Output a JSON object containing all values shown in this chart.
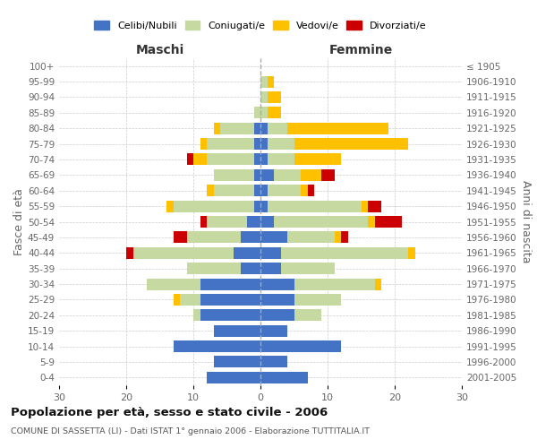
{
  "age_groups": [
    "0-4",
    "5-9",
    "10-14",
    "15-19",
    "20-24",
    "25-29",
    "30-34",
    "35-39",
    "40-44",
    "45-49",
    "50-54",
    "55-59",
    "60-64",
    "65-69",
    "70-74",
    "75-79",
    "80-84",
    "85-89",
    "90-94",
    "95-99",
    "100+"
  ],
  "birth_years": [
    "2001-2005",
    "1996-2000",
    "1991-1995",
    "1986-1990",
    "1981-1985",
    "1976-1980",
    "1971-1975",
    "1966-1970",
    "1961-1965",
    "1956-1960",
    "1951-1955",
    "1946-1950",
    "1941-1945",
    "1936-1940",
    "1931-1935",
    "1926-1930",
    "1921-1925",
    "1916-1920",
    "1911-1915",
    "1906-1910",
    "≤ 1905"
  ],
  "maschi": {
    "celibi": [
      8,
      7,
      13,
      7,
      9,
      9,
      9,
      3,
      4,
      3,
      2,
      1,
      1,
      1,
      1,
      1,
      1,
      0,
      0,
      0,
      0
    ],
    "coniugati": [
      0,
      0,
      0,
      0,
      1,
      3,
      8,
      8,
      15,
      8,
      6,
      12,
      6,
      6,
      7,
      7,
      5,
      1,
      0,
      0,
      0
    ],
    "vedovi": [
      0,
      0,
      0,
      0,
      0,
      1,
      0,
      0,
      0,
      0,
      0,
      1,
      1,
      0,
      2,
      1,
      1,
      0,
      0,
      0,
      0
    ],
    "divorziati": [
      0,
      0,
      0,
      0,
      0,
      0,
      0,
      0,
      1,
      2,
      1,
      0,
      0,
      0,
      1,
      0,
      0,
      0,
      0,
      0,
      0
    ]
  },
  "femmine": {
    "nubili": [
      7,
      4,
      12,
      4,
      5,
      5,
      5,
      3,
      3,
      4,
      2,
      1,
      1,
      2,
      1,
      1,
      1,
      0,
      0,
      0,
      0
    ],
    "coniugate": [
      0,
      0,
      0,
      0,
      4,
      7,
      12,
      8,
      19,
      7,
      14,
      14,
      5,
      4,
      4,
      4,
      3,
      1,
      1,
      1,
      0
    ],
    "vedove": [
      0,
      0,
      0,
      0,
      0,
      0,
      1,
      0,
      1,
      1,
      1,
      1,
      1,
      3,
      7,
      17,
      15,
      2,
      2,
      1,
      0
    ],
    "divorziate": [
      0,
      0,
      0,
      0,
      0,
      0,
      0,
      0,
      0,
      1,
      4,
      2,
      1,
      2,
      0,
      0,
      0,
      0,
      0,
      0,
      0
    ]
  },
  "colors": {
    "celibi": "#4472c4",
    "coniugati": "#c5d9a0",
    "vedovi": "#ffc000",
    "divorziati": "#cc0000"
  },
  "xlim": 30,
  "title": "Popolazione per età, sesso e stato civile - 2006",
  "subtitle": "COMUNE DI SASSETTA (LI) - Dati ISTAT 1° gennaio 2006 - Elaborazione TUTTITALIA.IT",
  "ylabel_left": "Fasce di età",
  "ylabel_right": "Anni di nascita",
  "xlabel_left": "Maschi",
  "xlabel_right": "Femmine",
  "bg_color": "#ffffff",
  "grid_color": "#cccccc"
}
